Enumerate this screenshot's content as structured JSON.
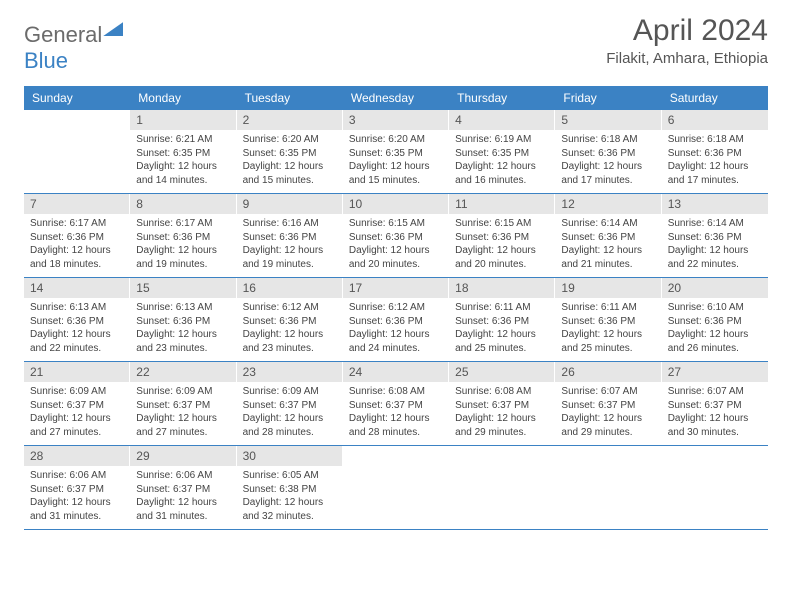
{
  "logo": {
    "text1": "General",
    "text2": "Blue"
  },
  "title": {
    "month": "April 2024",
    "location": "Filakit, Amhara, Ethiopia"
  },
  "colors": {
    "header_bg": "#3b82c4",
    "header_text": "#ffffff",
    "daynum_bg": "#e6e6e6",
    "divider": "#3b82c4",
    "body_text": "#444444",
    "title_text": "#555555"
  },
  "day_names": [
    "Sunday",
    "Monday",
    "Tuesday",
    "Wednesday",
    "Thursday",
    "Friday",
    "Saturday"
  ],
  "weeks": [
    [
      {
        "n": "",
        "sunrise": "",
        "sunset": "",
        "daylight": ""
      },
      {
        "n": "1",
        "sunrise": "Sunrise: 6:21 AM",
        "sunset": "Sunset: 6:35 PM",
        "daylight": "Daylight: 12 hours and 14 minutes."
      },
      {
        "n": "2",
        "sunrise": "Sunrise: 6:20 AM",
        "sunset": "Sunset: 6:35 PM",
        "daylight": "Daylight: 12 hours and 15 minutes."
      },
      {
        "n": "3",
        "sunrise": "Sunrise: 6:20 AM",
        "sunset": "Sunset: 6:35 PM",
        "daylight": "Daylight: 12 hours and 15 minutes."
      },
      {
        "n": "4",
        "sunrise": "Sunrise: 6:19 AM",
        "sunset": "Sunset: 6:35 PM",
        "daylight": "Daylight: 12 hours and 16 minutes."
      },
      {
        "n": "5",
        "sunrise": "Sunrise: 6:18 AM",
        "sunset": "Sunset: 6:36 PM",
        "daylight": "Daylight: 12 hours and 17 minutes."
      },
      {
        "n": "6",
        "sunrise": "Sunrise: 6:18 AM",
        "sunset": "Sunset: 6:36 PM",
        "daylight": "Daylight: 12 hours and 17 minutes."
      }
    ],
    [
      {
        "n": "7",
        "sunrise": "Sunrise: 6:17 AM",
        "sunset": "Sunset: 6:36 PM",
        "daylight": "Daylight: 12 hours and 18 minutes."
      },
      {
        "n": "8",
        "sunrise": "Sunrise: 6:17 AM",
        "sunset": "Sunset: 6:36 PM",
        "daylight": "Daylight: 12 hours and 19 minutes."
      },
      {
        "n": "9",
        "sunrise": "Sunrise: 6:16 AM",
        "sunset": "Sunset: 6:36 PM",
        "daylight": "Daylight: 12 hours and 19 minutes."
      },
      {
        "n": "10",
        "sunrise": "Sunrise: 6:15 AM",
        "sunset": "Sunset: 6:36 PM",
        "daylight": "Daylight: 12 hours and 20 minutes."
      },
      {
        "n": "11",
        "sunrise": "Sunrise: 6:15 AM",
        "sunset": "Sunset: 6:36 PM",
        "daylight": "Daylight: 12 hours and 20 minutes."
      },
      {
        "n": "12",
        "sunrise": "Sunrise: 6:14 AM",
        "sunset": "Sunset: 6:36 PM",
        "daylight": "Daylight: 12 hours and 21 minutes."
      },
      {
        "n": "13",
        "sunrise": "Sunrise: 6:14 AM",
        "sunset": "Sunset: 6:36 PM",
        "daylight": "Daylight: 12 hours and 22 minutes."
      }
    ],
    [
      {
        "n": "14",
        "sunrise": "Sunrise: 6:13 AM",
        "sunset": "Sunset: 6:36 PM",
        "daylight": "Daylight: 12 hours and 22 minutes."
      },
      {
        "n": "15",
        "sunrise": "Sunrise: 6:13 AM",
        "sunset": "Sunset: 6:36 PM",
        "daylight": "Daylight: 12 hours and 23 minutes."
      },
      {
        "n": "16",
        "sunrise": "Sunrise: 6:12 AM",
        "sunset": "Sunset: 6:36 PM",
        "daylight": "Daylight: 12 hours and 23 minutes."
      },
      {
        "n": "17",
        "sunrise": "Sunrise: 6:12 AM",
        "sunset": "Sunset: 6:36 PM",
        "daylight": "Daylight: 12 hours and 24 minutes."
      },
      {
        "n": "18",
        "sunrise": "Sunrise: 6:11 AM",
        "sunset": "Sunset: 6:36 PM",
        "daylight": "Daylight: 12 hours and 25 minutes."
      },
      {
        "n": "19",
        "sunrise": "Sunrise: 6:11 AM",
        "sunset": "Sunset: 6:36 PM",
        "daylight": "Daylight: 12 hours and 25 minutes."
      },
      {
        "n": "20",
        "sunrise": "Sunrise: 6:10 AM",
        "sunset": "Sunset: 6:36 PM",
        "daylight": "Daylight: 12 hours and 26 minutes."
      }
    ],
    [
      {
        "n": "21",
        "sunrise": "Sunrise: 6:09 AM",
        "sunset": "Sunset: 6:37 PM",
        "daylight": "Daylight: 12 hours and 27 minutes."
      },
      {
        "n": "22",
        "sunrise": "Sunrise: 6:09 AM",
        "sunset": "Sunset: 6:37 PM",
        "daylight": "Daylight: 12 hours and 27 minutes."
      },
      {
        "n": "23",
        "sunrise": "Sunrise: 6:09 AM",
        "sunset": "Sunset: 6:37 PM",
        "daylight": "Daylight: 12 hours and 28 minutes."
      },
      {
        "n": "24",
        "sunrise": "Sunrise: 6:08 AM",
        "sunset": "Sunset: 6:37 PM",
        "daylight": "Daylight: 12 hours and 28 minutes."
      },
      {
        "n": "25",
        "sunrise": "Sunrise: 6:08 AM",
        "sunset": "Sunset: 6:37 PM",
        "daylight": "Daylight: 12 hours and 29 minutes."
      },
      {
        "n": "26",
        "sunrise": "Sunrise: 6:07 AM",
        "sunset": "Sunset: 6:37 PM",
        "daylight": "Daylight: 12 hours and 29 minutes."
      },
      {
        "n": "27",
        "sunrise": "Sunrise: 6:07 AM",
        "sunset": "Sunset: 6:37 PM",
        "daylight": "Daylight: 12 hours and 30 minutes."
      }
    ],
    [
      {
        "n": "28",
        "sunrise": "Sunrise: 6:06 AM",
        "sunset": "Sunset: 6:37 PM",
        "daylight": "Daylight: 12 hours and 31 minutes."
      },
      {
        "n": "29",
        "sunrise": "Sunrise: 6:06 AM",
        "sunset": "Sunset: 6:37 PM",
        "daylight": "Daylight: 12 hours and 31 minutes."
      },
      {
        "n": "30",
        "sunrise": "Sunrise: 6:05 AM",
        "sunset": "Sunset: 6:38 PM",
        "daylight": "Daylight: 12 hours and 32 minutes."
      },
      {
        "n": "",
        "sunrise": "",
        "sunset": "",
        "daylight": ""
      },
      {
        "n": "",
        "sunrise": "",
        "sunset": "",
        "daylight": ""
      },
      {
        "n": "",
        "sunrise": "",
        "sunset": "",
        "daylight": ""
      },
      {
        "n": "",
        "sunrise": "",
        "sunset": "",
        "daylight": ""
      }
    ]
  ]
}
